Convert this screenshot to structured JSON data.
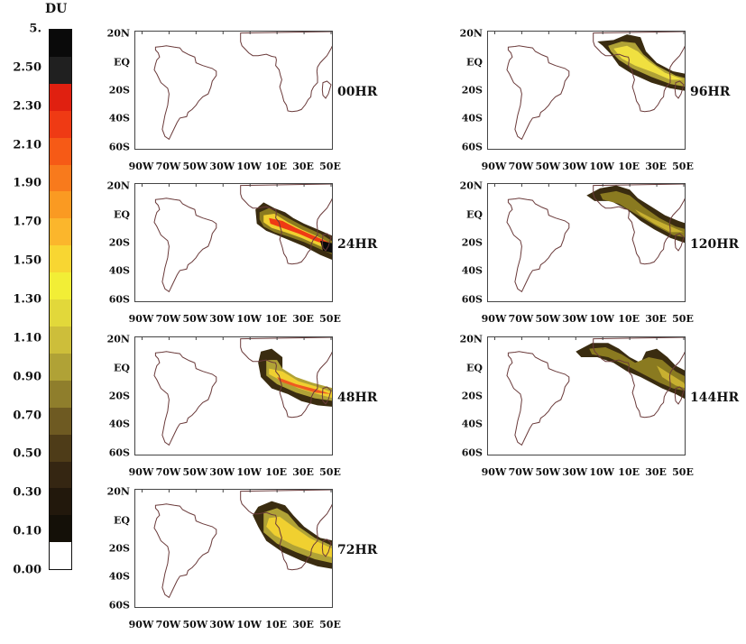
{
  "colorbar": {
    "unit": "DU",
    "labels": [
      "5.",
      "2.50",
      "2.30",
      "2.10",
      "1.90",
      "1.70",
      "1.50",
      "1.30",
      "1.10",
      "0.90",
      "0.70",
      "0.50",
      "0.30",
      "0.10",
      "0.00"
    ],
    "colors": [
      "#0a0a0a",
      "#202020",
      "#e02010",
      "#ef3a14",
      "#f65a16",
      "#f87a1c",
      "#fa9a22",
      "#fbb62c",
      "#f8d632",
      "#f2ee36",
      "#e2d83a",
      "#cdbe3a",
      "#b0a236",
      "#8f7e2c",
      "#6e5a22",
      "#4e3c18",
      "#352612",
      "#22180c",
      "#141008",
      "#ffffff"
    ]
  },
  "axes": {
    "lat_labels": [
      "20N",
      "EQ",
      "20S",
      "40S",
      "60S"
    ],
    "lon_labels": [
      "90W",
      "70W",
      "50W",
      "30W",
      "10W",
      "10E",
      "30E",
      "50E"
    ]
  },
  "panels": [
    {
      "label": "00HR",
      "plume": "none"
    },
    {
      "label": "24HR",
      "plume": "strong"
    },
    {
      "label": "48HR",
      "plume": "medium"
    },
    {
      "label": "72HR",
      "plume": "spread"
    },
    {
      "label": "96HR",
      "plume": "yellow"
    },
    {
      "label": "120HR",
      "plume": "dark"
    },
    {
      "label": "144HR",
      "plume": "dark2"
    }
  ]
}
